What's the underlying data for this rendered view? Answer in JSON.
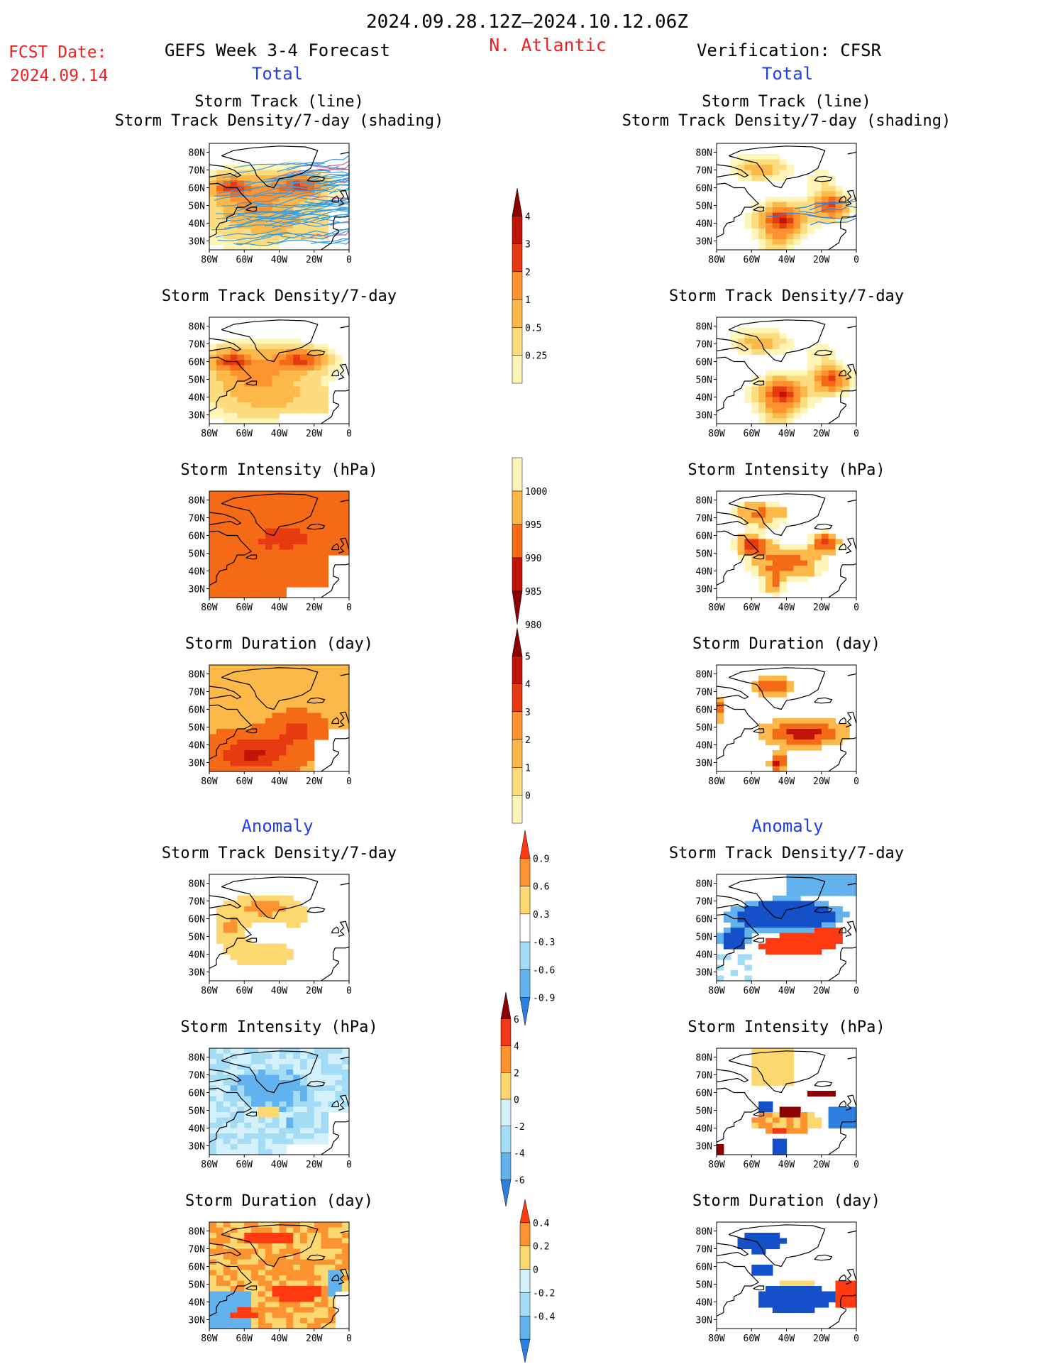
{
  "header": {
    "period": "2024.09.28.12Z–2024.10.12.06Z",
    "region": "N. Atlantic",
    "fcst_label": "FCST Date:",
    "fcst_date": "2024.09.14",
    "left_title": "GEFS Week 3-4 Forecast",
    "right_title": "Verification: CFSR",
    "total_left": "Total",
    "total_right": "Total",
    "anomaly_left": "Anomaly",
    "anomaly_right": "Anomaly"
  },
  "colors": {
    "text_red": "#ee2222",
    "text_blue": "#1f3fe8",
    "warm": [
      "#fff5b8",
      "#fddc80",
      "#fdb84a",
      "#fd9230",
      "#f56a17",
      "#e63a10",
      "#c01408",
      "#8b0000"
    ],
    "cool": [
      "#d3f1fb",
      "#a4dcf6",
      "#62b2ee",
      "#2f7fe0",
      "#1450c8"
    ],
    "track": "#3a9de0",
    "ocean": "#ffffff",
    "coast": "#000000"
  },
  "chart_data": [
    {
      "id": "p1",
      "type": "heatmap",
      "title": [
        "Storm Track (line)",
        "Storm Track Density/7-day (shading)"
      ],
      "xticks": [
        "80W",
        "60W",
        "40W",
        "20W",
        "0"
      ],
      "yticks": [
        "80N",
        "70N",
        "60N",
        "50N",
        "40N",
        "30N"
      ],
      "field": "gefs_density",
      "tracks": "many",
      "colorbar": "density"
    },
    {
      "id": "p2",
      "type": "heatmap",
      "title": [
        "Storm Track (line)",
        "Storm Track Density/7-day (shading)"
      ],
      "xticks": [
        "80W",
        "60W",
        "40W",
        "20W",
        "0"
      ],
      "yticks": [
        "80N",
        "70N",
        "60N",
        "50N",
        "40N",
        "30N"
      ],
      "field": "cfsr_density",
      "tracks": "few",
      "colorbar": "density"
    },
    {
      "id": "p3",
      "type": "heatmap",
      "title": [
        "Storm Track Density/7-day"
      ],
      "xticks": [
        "80W",
        "60W",
        "40W",
        "20W",
        "0"
      ],
      "yticks": [
        "80N",
        "70N",
        "60N",
        "50N",
        "40N",
        "30N"
      ],
      "field": "gefs_density"
    },
    {
      "id": "p4",
      "type": "heatmap",
      "title": [
        "Storm Track Density/7-day"
      ],
      "xticks": [
        "80W",
        "60W",
        "40W",
        "20W",
        "0"
      ],
      "yticks": [
        "80N",
        "70N",
        "60N",
        "50N",
        "40N",
        "30N"
      ],
      "field": "cfsr_density"
    },
    {
      "id": "p5",
      "type": "heatmap",
      "title": [
        "Storm Intensity (hPa)"
      ],
      "xticks": [
        "80W",
        "60W",
        "40W",
        "20W",
        "0"
      ],
      "yticks": [
        "80N",
        "70N",
        "60N",
        "50N",
        "40N",
        "30N"
      ],
      "field": "gefs_intensity"
    },
    {
      "id": "p6",
      "type": "heatmap",
      "title": [
        "Storm Intensity (hPa)"
      ],
      "xticks": [
        "80W",
        "60W",
        "40W",
        "20W",
        "0"
      ],
      "yticks": [
        "80N",
        "70N",
        "60N",
        "50N",
        "40N",
        "30N"
      ],
      "field": "cfsr_intensity"
    },
    {
      "id": "p7",
      "type": "heatmap",
      "title": [
        "Storm Duration (day)"
      ],
      "xticks": [
        "80W",
        "60W",
        "40W",
        "20W",
        "0"
      ],
      "yticks": [
        "80N",
        "70N",
        "60N",
        "50N",
        "40N",
        "30N"
      ],
      "field": "gefs_duration"
    },
    {
      "id": "p8",
      "type": "heatmap",
      "title": [
        "Storm Duration (day)"
      ],
      "xticks": [
        "80W",
        "60W",
        "40W",
        "20W",
        "0"
      ],
      "yticks": [
        "80N",
        "70N",
        "60N",
        "50N",
        "40N",
        "30N"
      ],
      "field": "cfsr_duration"
    },
    {
      "id": "p9",
      "type": "heatmap",
      "title": [
        "Storm Track Density/7-day"
      ],
      "xticks": [
        "80W",
        "60W",
        "40W",
        "20W",
        "0"
      ],
      "yticks": [
        "80N",
        "70N",
        "60N",
        "50N",
        "40N",
        "30N"
      ],
      "field": "gefs_density_anom"
    },
    {
      "id": "p10",
      "type": "heatmap",
      "title": [
        "Storm Track Density/7-day"
      ],
      "xticks": [
        "80W",
        "60W",
        "40W",
        "20W",
        "0"
      ],
      "yticks": [
        "80N",
        "70N",
        "60N",
        "50N",
        "40N",
        "30N"
      ],
      "field": "cfsr_density_anom"
    },
    {
      "id": "p11",
      "type": "heatmap",
      "title": [
        "Storm Intensity (hPa)"
      ],
      "xticks": [
        "80W",
        "60W",
        "40W",
        "20W",
        "0"
      ],
      "yticks": [
        "80N",
        "70N",
        "60N",
        "50N",
        "40N",
        "30N"
      ],
      "field": "gefs_intensity_anom"
    },
    {
      "id": "p12",
      "type": "heatmap",
      "title": [
        "Storm Intensity (hPa)"
      ],
      "xticks": [
        "80W",
        "60W",
        "40W",
        "20W",
        "0"
      ],
      "yticks": [
        "80N",
        "70N",
        "60N",
        "50N",
        "40N",
        "30N"
      ],
      "field": "cfsr_intensity_anom"
    },
    {
      "id": "p13",
      "type": "heatmap",
      "title": [
        "Storm Duration (day)"
      ],
      "xticks": [
        "80W",
        "60W",
        "40W",
        "20W",
        "0"
      ],
      "yticks": [
        "80N",
        "70N",
        "60N",
        "50N",
        "40N",
        "30N"
      ],
      "field": "gefs_duration_anom"
    },
    {
      "id": "p14",
      "type": "heatmap",
      "title": [
        "Storm Duration (day)"
      ],
      "xticks": [
        "80W",
        "60W",
        "40W",
        "20W",
        "0"
      ],
      "yticks": [
        "80N",
        "70N",
        "60N",
        "50N",
        "40N",
        "30N"
      ],
      "field": "cfsr_duration_anom"
    }
  ],
  "colorbars": [
    {
      "id": "cb-density",
      "labels": [
        "4",
        "3",
        "2",
        "1",
        "0.5",
        "0.25"
      ],
      "colors": [
        "#8b0000",
        "#c01408",
        "#e63a10",
        "#fd9230",
        "#fdb84a",
        "#fddc80",
        "#fff5b8"
      ]
    },
    {
      "id": "cb-intensity",
      "labels": [
        "1000",
        "995",
        "990",
        "985",
        "980"
      ],
      "colors": [
        "#fff5b8",
        "#fdb84a",
        "#f56a17",
        "#c01408",
        "#8b0000"
      ]
    },
    {
      "id": "cb-duration",
      "labels": [
        "5",
        "4",
        "3",
        "2",
        "1",
        "0"
      ],
      "colors": [
        "#8b0000",
        "#c01408",
        "#e63a10",
        "#fd9230",
        "#fdb84a",
        "#fddc80",
        "#fff5b8"
      ]
    },
    {
      "id": "cb-density-anom",
      "labels": [
        "0.9",
        "0.6",
        "0.3",
        "-0.3",
        "-0.6",
        "-0.9"
      ],
      "colors": [
        "#ff3a10",
        "#fd9230",
        "#fdd870",
        "#ffffff",
        "#a4dcf6",
        "#62b2ee",
        "#2f7fe0"
      ]
    },
    {
      "id": "cb-intensity-anom",
      "labels": [
        "6",
        "4",
        "2",
        "0",
        "-2",
        "-4",
        "-6"
      ],
      "colors": [
        "#8b0000",
        "#ee3a18",
        "#fd9230",
        "#fdd870",
        "#d3f1fb",
        "#a4dcf6",
        "#62b2ee",
        "#2f7fe0"
      ]
    },
    {
      "id": "cb-duration-anom",
      "labels": [
        "0.4",
        "0.2",
        "0",
        "-0.2",
        "-0.4"
      ],
      "colors": [
        "#ff3a10",
        "#fd9230",
        "#fdd870",
        "#d3f1fb",
        "#a4dcf6",
        "#62b2ee",
        "#2f7fe0"
      ]
    }
  ]
}
